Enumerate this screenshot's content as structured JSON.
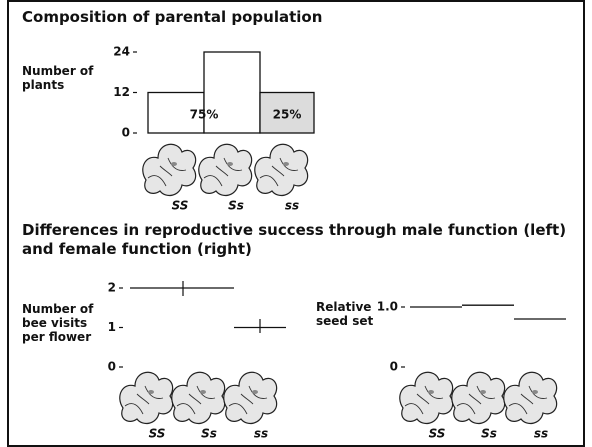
{
  "chart_data": [
    {
      "type": "bar",
      "title": "Composition of parental population",
      "ylabel": "Number of plants",
      "categories": [
        "SS",
        "Ss",
        "ss"
      ],
      "values": [
        12,
        24,
        12
      ],
      "colors": [
        "#ffffff",
        "#ffffff",
        "#dcdcdc"
      ],
      "group_labels": [
        "75%",
        "25%"
      ],
      "ylim": [
        0,
        24
      ],
      "yticks": [
        0,
        12,
        24
      ]
    },
    {
      "type": "segment",
      "title": "Differences in reproductive success through male function (left) and female function (right)",
      "ylabel": "Number of bee visits per flower",
      "categories": [
        "SS",
        "Ss",
        "ss"
      ],
      "values": [
        2,
        2,
        1
      ],
      "ylim": [
        0,
        2
      ],
      "yticks": [
        0,
        1,
        2
      ]
    },
    {
      "type": "segment",
      "ylabel": "Relative seed set",
      "categories": [
        "SS",
        "Ss",
        "ss"
      ],
      "values": [
        1.0,
        1.03,
        0.8
      ],
      "ylim": [
        0,
        1.0
      ],
      "yticks": [
        0,
        {
          "value": 1,
          "label": "1.0"
        }
      ]
    }
  ]
}
